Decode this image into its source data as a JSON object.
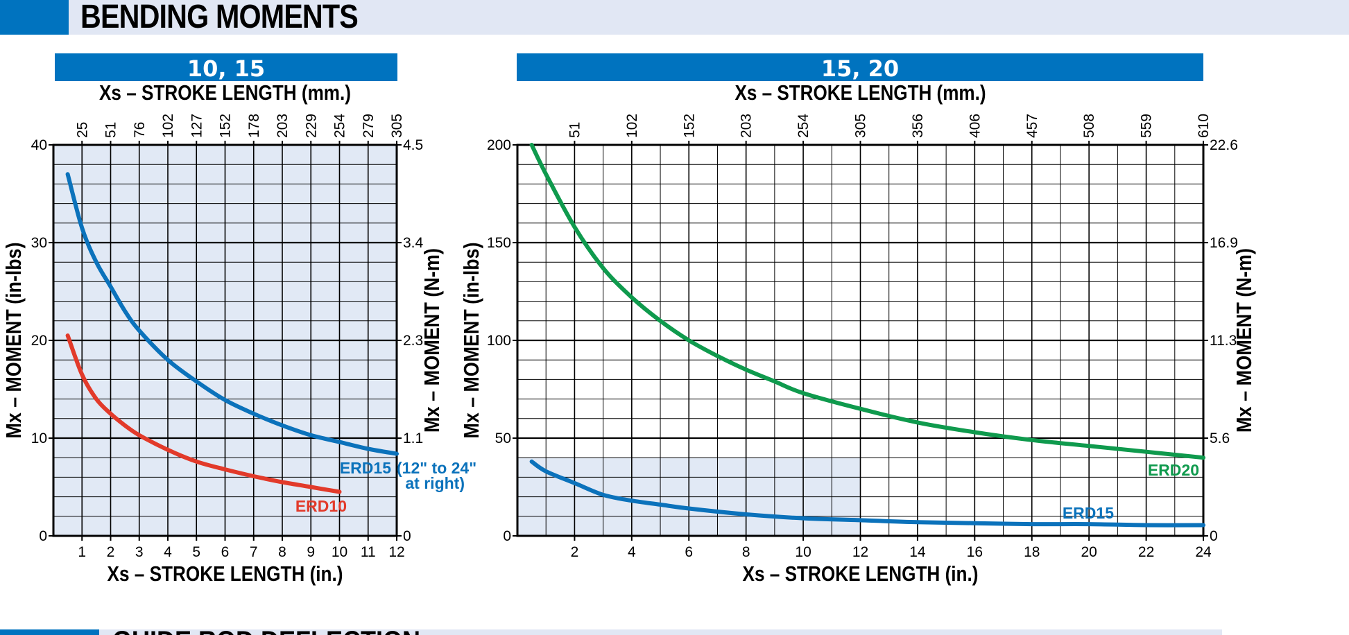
{
  "header": {
    "title": "BENDING MOMENTS"
  },
  "footer": {
    "title": "GUIDE ROD DEFLECTION"
  },
  "colors": {
    "accent": "#0073bf",
    "band": "#e1e7f4",
    "erd10": "#e23a2a",
    "erd15": "#0b72bb",
    "erd20": "#0f9a4d",
    "shade": "#e1e9f5"
  },
  "chart_data": [
    {
      "type": "line",
      "title": "10, 15",
      "xlabel": "Xs – STROKE  LENGTH (in.)",
      "x2label": "Xs – STROKE  LENGTH (mm.)",
      "ylabel": "Mx – MOMENT (in-lbs)",
      "y2label": "Mx – MOMENT (N-m)",
      "xlim": [
        0,
        12
      ],
      "ylim": [
        0,
        40
      ],
      "grid": true,
      "shaded": true,
      "x_ticks": [
        "1",
        "2",
        "3",
        "4",
        "5",
        "6",
        "7",
        "8",
        "9",
        "10",
        "11",
        "12"
      ],
      "x2_ticks": [
        "25",
        "51",
        "76",
        "102",
        "127",
        "152",
        "178",
        "203",
        "229",
        "254",
        "279",
        "305"
      ],
      "y_ticks": [
        "0",
        "10",
        "20",
        "30",
        "40"
      ],
      "y2_ticks": [
        "0",
        "1.1",
        "2.3",
        "3.4",
        "4.5"
      ],
      "series": [
        {
          "name": "ERD15",
          "x": [
            0.5,
            1,
            1.5,
            2,
            2.5,
            3,
            4,
            5,
            6,
            7,
            8,
            9,
            10,
            11,
            12
          ],
          "values": [
            37,
            31.5,
            28,
            25.5,
            23,
            21,
            18,
            15.8,
            13.9,
            12.5,
            11.3,
            10.3,
            9.6,
            8.9,
            8.4
          ]
        },
        {
          "name": "ERD10",
          "x": [
            0.5,
            1,
            1.5,
            2,
            2.5,
            3,
            4,
            5,
            6,
            7,
            8,
            9,
            10
          ],
          "values": [
            20.5,
            16.5,
            14,
            12.5,
            11.3,
            10.3,
            8.8,
            7.6,
            6.8,
            6.1,
            5.5,
            5,
            4.5
          ]
        }
      ],
      "annotations": [
        "(12\" to 24\"",
        "at right)"
      ]
    },
    {
      "type": "line",
      "title": "15, 20",
      "xlabel": "Xs – STROKE  LENGTH (in.)",
      "x2label": "Xs – STROKE  LENGTH (mm.)",
      "ylabel": "Mx – MOMENT (in-lbs)",
      "y2label": "Mx – MOMENT (N-m)",
      "xlim": [
        0,
        24
      ],
      "ylim": [
        0,
        200
      ],
      "grid": true,
      "shaded_region": {
        "x": [
          0,
          12
        ],
        "y": [
          0,
          40
        ]
      },
      "x_ticks": [
        "2",
        "4",
        "6",
        "8",
        "10",
        "12",
        "14",
        "16",
        "18",
        "20",
        "22",
        "24"
      ],
      "x2_ticks": [
        "51",
        "102",
        "152",
        "203",
        "254",
        "305",
        "356",
        "406",
        "457",
        "508",
        "559",
        "610"
      ],
      "y_ticks": [
        "0",
        "50",
        "100",
        "150",
        "200"
      ],
      "y2_ticks": [
        "0",
        "5.6",
        "11.3",
        "16.9",
        "22.6"
      ],
      "series": [
        {
          "name": "ERD20",
          "x": [
            0.5,
            1,
            2,
            3,
            4,
            5,
            6,
            7,
            8,
            9,
            10,
            12,
            14,
            16,
            18,
            20,
            22,
            24
          ],
          "values": [
            200,
            185,
            158,
            137,
            122,
            110,
            100,
            92,
            85,
            79,
            73,
            65,
            58,
            53,
            49,
            46,
            43,
            40
          ]
        },
        {
          "name": "ERD15",
          "x": [
            0.5,
            1,
            2,
            3,
            4,
            5,
            6,
            8,
            10,
            12,
            14,
            16,
            18,
            20,
            22,
            24
          ],
          "values": [
            38,
            33,
            27,
            21,
            18,
            16,
            14,
            11,
            9,
            8,
            7,
            6.5,
            6,
            6,
            5.5,
            5.5
          ]
        }
      ]
    }
  ]
}
